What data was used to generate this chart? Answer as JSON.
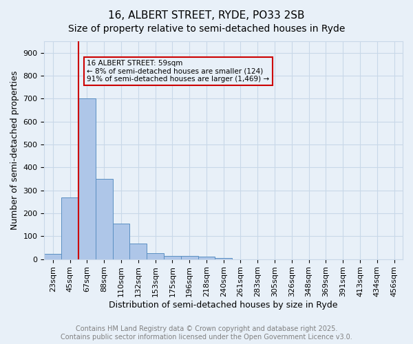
{
  "title1": "16, ALBERT STREET, RYDE, PO33 2SB",
  "title2": "Size of property relative to semi-detached houses in Ryde",
  "xlabel": "Distribution of semi-detached houses by size in Ryde",
  "ylabel": "Number of semi-detached properties",
  "bar_values": [
    22,
    270,
    700,
    350,
    155,
    68,
    25,
    14,
    15,
    10,
    5,
    0,
    0,
    0,
    0,
    0,
    0,
    0,
    0,
    0,
    0
  ],
  "bar_labels": [
    "23sqm",
    "45sqm",
    "67sqm",
    "88sqm",
    "110sqm",
    "132sqm",
    "153sqm",
    "175sqm",
    "196sqm",
    "218sqm",
    "240sqm",
    "261sqm",
    "283sqm",
    "305sqm",
    "326sqm",
    "348sqm",
    "369sqm",
    "391sqm",
    "413sqm",
    "434sqm",
    "456sqm"
  ],
  "bar_color": "#aec6e8",
  "bar_edge_color": "#5a8fc2",
  "grid_color": "#c8d8e8",
  "background_color": "#e8f0f8",
  "vline_color": "#cc0000",
  "annotation_text": "16 ALBERT STREET: 59sqm\n← 8% of semi-detached houses are smaller (124)\n91% of semi-detached houses are larger (1,469) →",
  "annotation_box_color": "#cc0000",
  "ylim": [
    0,
    950
  ],
  "yticks": [
    0,
    100,
    200,
    300,
    400,
    500,
    600,
    700,
    800,
    900
  ],
  "footer_text": "Contains HM Land Registry data © Crown copyright and database right 2025.\nContains public sector information licensed under the Open Government Licence v3.0.",
  "title1_fontsize": 11,
  "title2_fontsize": 10,
  "label_fontsize": 9,
  "tick_fontsize": 8,
  "footer_fontsize": 7
}
